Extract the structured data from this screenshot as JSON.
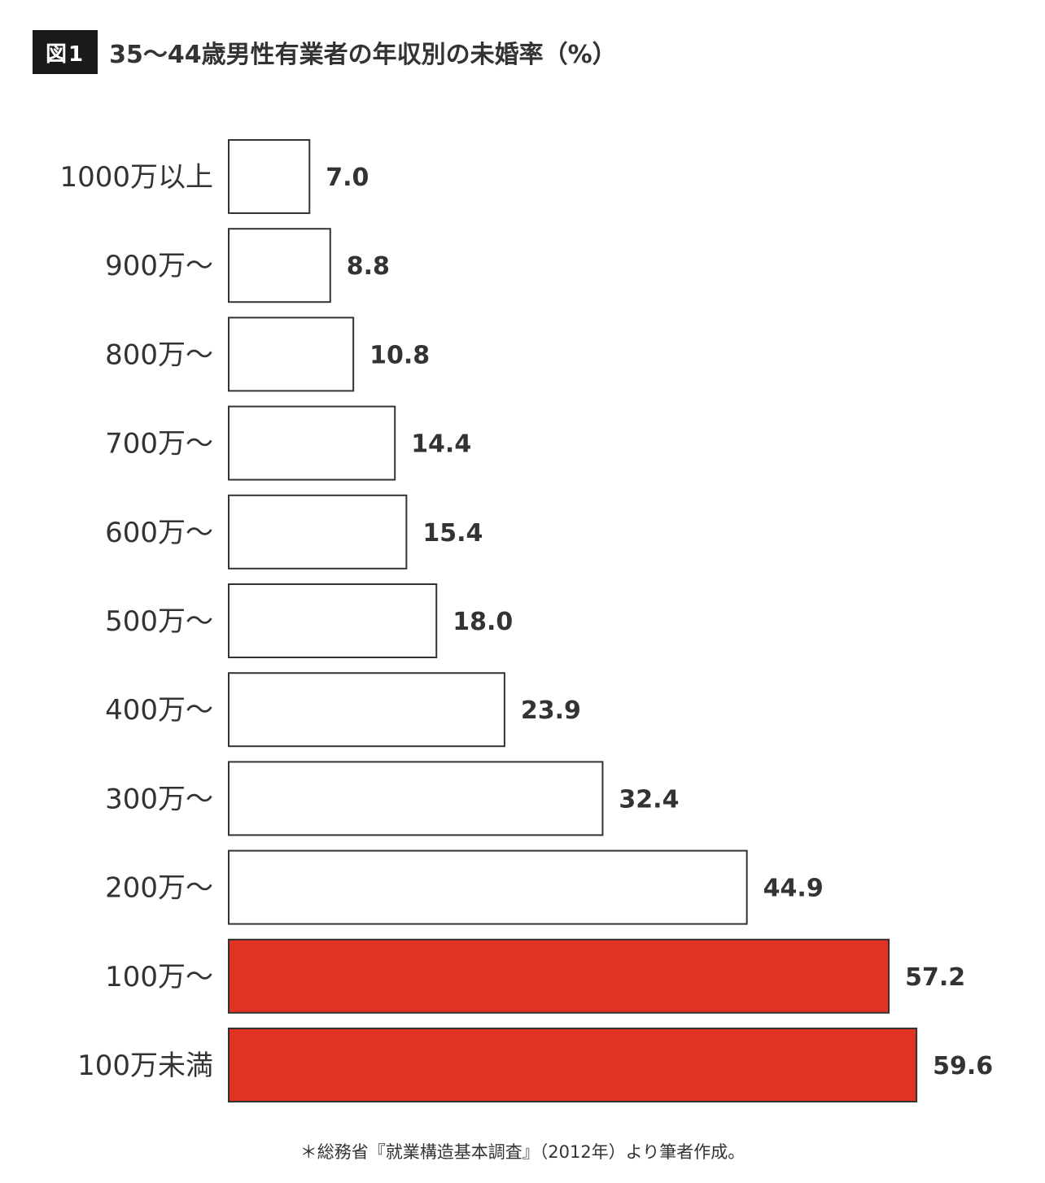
{
  "figure": {
    "badge": "図1"
  },
  "chart_data": {
    "type": "bar",
    "orientation": "horizontal",
    "title": "35〜44歳男性有業者の年収別の未婚率（%）",
    "categories": [
      "1000万以上",
      "900万〜",
      "800万〜",
      "700万〜",
      "600万〜",
      "500万〜",
      "400万〜",
      "300万〜",
      "200万〜",
      "100万〜",
      "100万未満"
    ],
    "values": [
      7.0,
      8.8,
      10.8,
      14.4,
      15.4,
      18.0,
      23.9,
      32.4,
      44.9,
      57.2,
      59.6
    ],
    "value_labels": [
      "7.0",
      "8.8",
      "10.8",
      "14.4",
      "15.4",
      "18.0",
      "23.9",
      "32.4",
      "44.9",
      "57.2",
      "59.6"
    ],
    "highlighted": [
      false,
      false,
      false,
      false,
      false,
      false,
      false,
      false,
      false,
      true,
      true
    ],
    "colors": {
      "default_fill": "#ffffff",
      "highlight_fill": "#e03323",
      "stroke": "#333333"
    },
    "xlim": [
      0,
      60
    ],
    "grid": false,
    "legend": "none"
  },
  "footnote": "＊総務省『就業構造基本調査』（2012年）より筆者作成。"
}
